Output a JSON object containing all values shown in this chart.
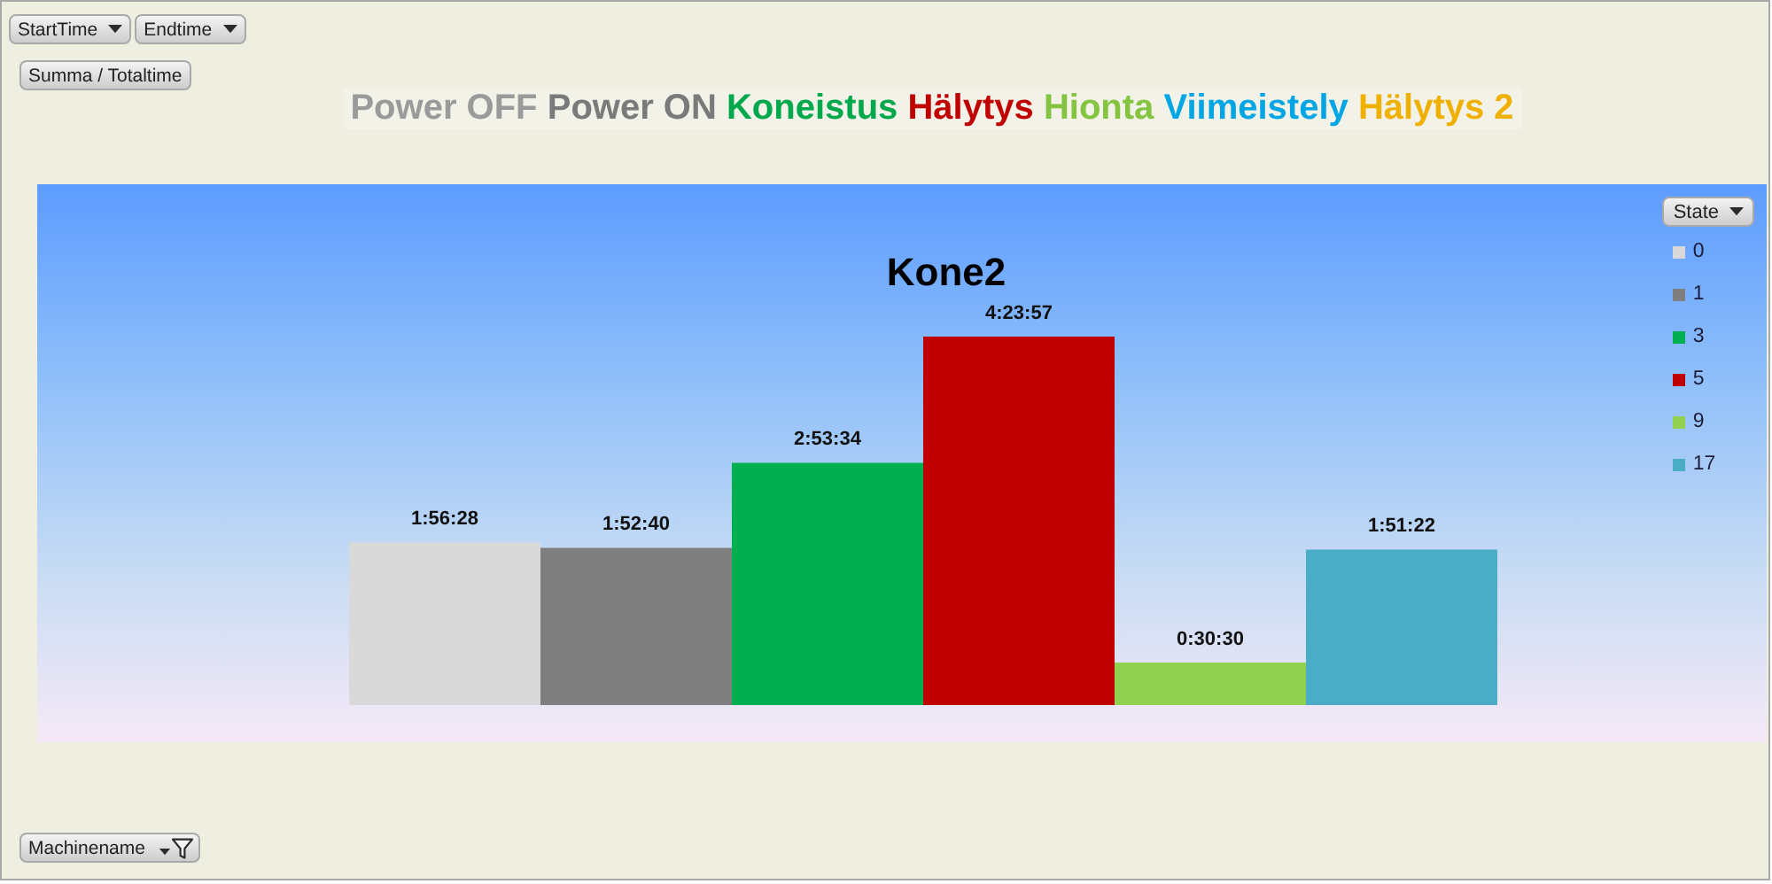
{
  "chart_data": {
    "type": "bar",
    "title": "Kone2",
    "categories": [
      null
    ],
    "series": [
      {
        "name": "0",
        "color": "#d9d9d9",
        "values": [
          1.94111
        ],
        "value_labels": [
          "1:56:28"
        ]
      },
      {
        "name": "1",
        "color": "#7f7f7f",
        "values": [
          1.87778
        ],
        "value_labels": [
          "1:52:40"
        ]
      },
      {
        "name": "3",
        "color": "#00b050",
        "values": [
          2.89278
        ],
        "value_labels": [
          "2:53:34"
        ]
      },
      {
        "name": "5",
        "color": "#c00000",
        "values": [
          4.39917
        ],
        "value_labels": [
          "4:23:57"
        ]
      },
      {
        "name": "9",
        "color": "#92d050",
        "values": [
          0.50833
        ],
        "value_labels": [
          "0:30:30"
        ]
      },
      {
        "name": "17",
        "color": "#4bacc6",
        "values": [
          1.85611
        ],
        "value_labels": [
          "1:51:22"
        ]
      }
    ],
    "legend": "top right",
    "legend_title": "State",
    "tick_labels": false,
    "annotations": [
      "StartTime",
      "Endtime",
      "Summa / Totaltime",
      "Machinename",
      "Power OFF",
      "Power ON",
      "Koneistus",
      "Hälytys",
      "Hionta",
      "Viimeistely",
      "Hälytys 2"
    ]
  }
}
